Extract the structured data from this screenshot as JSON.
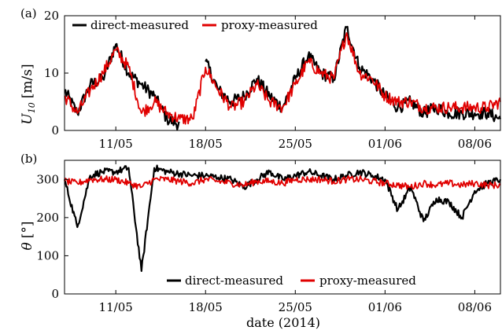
{
  "figure": {
    "colors": {
      "direct": "#000000",
      "proxy": "#e00000",
      "gap": "#b0b0b0"
    }
  },
  "chart_data": [
    {
      "type": "line",
      "panel_label": "(a)",
      "ylabel": "U10 [m/s]",
      "ylabel_main": "U",
      "ylabel_sub": "10",
      "ylabel_unit": "[m/s]",
      "xlabel": "",
      "ylim": [
        0,
        20
      ],
      "yticks": [
        "0",
        "10",
        "20"
      ],
      "xlim": [
        "2014-05-07",
        "2014-06-10"
      ],
      "xticks": [
        {
          "date": "2014-05-11",
          "label": "11/05"
        },
        {
          "date": "2014-05-18",
          "label": "18/05"
        },
        {
          "date": "2014-05-25",
          "label": "25/05"
        },
        {
          "date": "2014-06-01",
          "label": "01/06"
        },
        {
          "date": "2014-06-08",
          "label": "08/06"
        }
      ],
      "legend_position": "top",
      "series": [
        {
          "name": "direct-measured",
          "color": "#000000",
          "x": [
            "2014-05-07",
            "2014-05-08",
            "2014-05-09",
            "2014-05-10",
            "2014-05-11",
            "2014-05-12",
            "2014-05-13",
            "2014-05-14",
            "2014-05-15",
            "2014-05-16",
            "2014-05-17",
            "2014-05-18",
            "2014-05-19",
            "2014-05-20",
            "2014-05-21",
            "2014-05-22",
            "2014-05-23",
            "2014-05-24",
            "2014-05-25",
            "2014-05-26",
            "2014-05-27",
            "2014-05-28",
            "2014-05-29",
            "2014-05-30",
            "2014-05-31",
            "2014-06-01",
            "2014-06-02",
            "2014-06-03",
            "2014-06-04",
            "2014-06-05",
            "2014-06-06",
            "2014-06-07",
            "2014-06-08",
            "2014-06-09",
            "2014-06-10"
          ],
          "y": [
            7,
            3,
            8,
            9,
            15,
            10,
            8,
            6,
            2,
            1,
            null,
            12,
            7,
            5,
            6,
            9,
            6,
            4,
            9,
            13,
            10,
            9,
            18,
            11,
            9,
            6,
            4,
            5,
            3,
            4,
            3,
            3,
            3,
            3,
            2
          ]
        },
        {
          "name": "proxy-measured",
          "color": "#e00000",
          "x": [
            "2014-05-07",
            "2014-05-08",
            "2014-05-09",
            "2014-05-10",
            "2014-05-11",
            "2014-05-12",
            "2014-05-13",
            "2014-05-14",
            "2014-05-15",
            "2014-05-16",
            "2014-05-17",
            "2014-05-18",
            "2014-05-19",
            "2014-05-20",
            "2014-05-21",
            "2014-05-22",
            "2014-05-23",
            "2014-05-24",
            "2014-05-25",
            "2014-05-26",
            "2014-05-27",
            "2014-05-28",
            "2014-05-29",
            "2014-05-30",
            "2014-05-31",
            "2014-06-01",
            "2014-06-02",
            "2014-06-03",
            "2014-06-04",
            "2014-06-05",
            "2014-06-06",
            "2014-06-07",
            "2014-06-08",
            "2014-06-09",
            "2014-06-10"
          ],
          "y": [
            6,
            3,
            7,
            10,
            14,
            11,
            3,
            5,
            3,
            2,
            2,
            11,
            7,
            4,
            5,
            8,
            5,
            4,
            8,
            12,
            10,
            9,
            17,
            10,
            9,
            6,
            5,
            5,
            4,
            4,
            4,
            4,
            4,
            4,
            5
          ]
        }
      ]
    },
    {
      "type": "line",
      "panel_label": "(b)",
      "ylabel": "θ [°]",
      "ylabel_main": "θ",
      "ylabel_unit": "[°]",
      "xlabel": "date (2014)",
      "ylim": [
        0,
        350
      ],
      "yticks": [
        "0",
        "100",
        "200",
        "300"
      ],
      "xlim": [
        "2014-05-07",
        "2014-06-10"
      ],
      "xticks": [
        {
          "date": "2014-05-11",
          "label": "11/05"
        },
        {
          "date": "2014-05-18",
          "label": "18/05"
        },
        {
          "date": "2014-05-25",
          "label": "25/05"
        },
        {
          "date": "2014-06-01",
          "label": "01/06"
        },
        {
          "date": "2014-06-08",
          "label": "08/06"
        }
      ],
      "legend_position": "bottom",
      "series": [
        {
          "name": "direct-measured",
          "color": "#000000",
          "x": [
            "2014-05-07",
            "2014-05-08",
            "2014-05-09",
            "2014-05-10",
            "2014-05-11",
            "2014-05-12",
            "2014-05-13",
            "2014-05-14",
            "2014-05-15",
            "2014-05-16",
            "2014-05-17",
            "2014-05-18",
            "2014-05-19",
            "2014-05-20",
            "2014-05-21",
            "2014-05-22",
            "2014-05-23",
            "2014-05-24",
            "2014-05-25",
            "2014-05-26",
            "2014-05-27",
            "2014-05-28",
            "2014-05-29",
            "2014-05-30",
            "2014-05-31",
            "2014-06-01",
            "2014-06-02",
            "2014-06-03",
            "2014-06-04",
            "2014-06-05",
            "2014-06-06",
            "2014-06-07",
            "2014-06-08",
            "2014-06-09",
            "2014-06-10"
          ],
          "y": [
            300,
            175,
            310,
            320,
            320,
            330,
            60,
            330,
            320,
            315,
            310,
            310,
            305,
            300,
            280,
            300,
            320,
            300,
            310,
            320,
            310,
            300,
            310,
            320,
            310,
            300,
            220,
            280,
            190,
            250,
            240,
            200,
            270,
            290,
            300
          ]
        },
        {
          "name": "proxy-measured",
          "color": "#e00000",
          "x": [
            "2014-05-07",
            "2014-05-08",
            "2014-05-09",
            "2014-05-10",
            "2014-05-11",
            "2014-05-12",
            "2014-05-13",
            "2014-05-14",
            "2014-05-15",
            "2014-05-16",
            "2014-05-17",
            "2014-05-18",
            "2014-05-19",
            "2014-05-20",
            "2014-05-21",
            "2014-05-22",
            "2014-05-23",
            "2014-05-24",
            "2014-05-25",
            "2014-05-26",
            "2014-05-27",
            "2014-05-28",
            "2014-05-29",
            "2014-05-30",
            "2014-05-31",
            "2014-06-01",
            "2014-06-02",
            "2014-06-03",
            "2014-06-04",
            "2014-06-05",
            "2014-06-06",
            "2014-06-07",
            "2014-06-08",
            "2014-06-09",
            "2014-06-10"
          ],
          "y": [
            295,
            290,
            300,
            300,
            300,
            290,
            280,
            300,
            300,
            295,
            290,
            300,
            295,
            290,
            285,
            295,
            295,
            290,
            300,
            300,
            300,
            295,
            300,
            300,
            295,
            290,
            285,
            280,
            290,
            285,
            290,
            285,
            290,
            285,
            285
          ]
        }
      ]
    }
  ]
}
